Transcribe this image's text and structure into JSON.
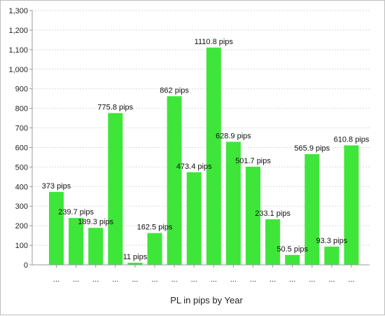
{
  "chart_data": {
    "type": "bar",
    "title": "",
    "xlabel": "PL in pips by Year",
    "ylabel": "",
    "ylim": [
      0,
      1300
    ],
    "yticks": [
      0,
      100,
      200,
      300,
      400,
      500,
      600,
      700,
      800,
      900,
      1000,
      1100,
      1200,
      1300
    ],
    "ytick_labels": [
      "0",
      "100",
      "200",
      "300",
      "400",
      "500",
      "600",
      "700",
      "800",
      "900",
      "1,000",
      "1,100",
      "1,200",
      "1,300"
    ],
    "categories": [
      "...",
      "...",
      "...",
      "...",
      "...",
      "...",
      "...",
      "...",
      "...",
      "...",
      "...",
      "...",
      "...",
      "...",
      "...",
      "..."
    ],
    "values": [
      373,
      239.7,
      189.3,
      775.8,
      11,
      162.5,
      862,
      473.4,
      1110.8,
      628.9,
      501.7,
      233.1,
      50.5,
      565.9,
      93.3,
      610.8
    ],
    "data_labels": [
      "373 pips",
      "239.7 pips",
      "189.3 pips",
      "775.8 pips",
      "11 pips",
      "162.5 pips",
      "862 pips",
      "473.4 pips",
      "1110.8 pips",
      "628.9 pips",
      "501.7 pips",
      "233.1 pips",
      "50.5 pips",
      "565.9 pips",
      "93.3 pips",
      "610.8 pips"
    ],
    "bar_color": "#3fe63a",
    "grid": true
  }
}
